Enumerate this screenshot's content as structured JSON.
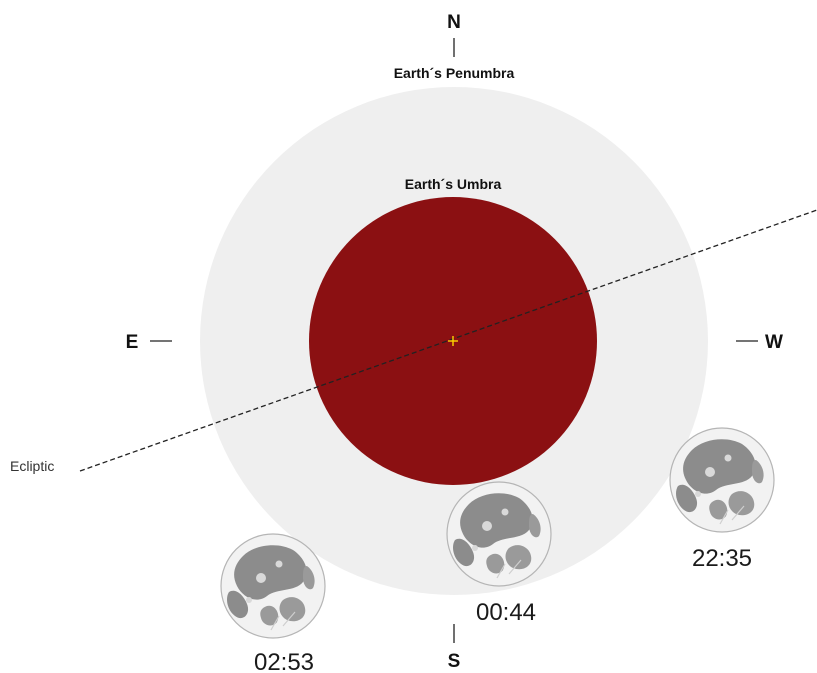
{
  "labels": {
    "north": "N",
    "south": "S",
    "east": "E",
    "west": "W",
    "penumbra": "Earth´s Penumbra",
    "umbra": "Earth´s Umbra",
    "ecliptic": "Ecliptic"
  },
  "moons": [
    {
      "time": "22:35"
    },
    {
      "time": "00:44"
    },
    {
      "time": "02:53"
    }
  ],
  "colors": {
    "penumbra": "#efefef",
    "umbra": "#8b1012",
    "center_mark": "#ffd400",
    "moon_disk": "#f2f2f2",
    "moon_maria": "#8c8c8c"
  }
}
